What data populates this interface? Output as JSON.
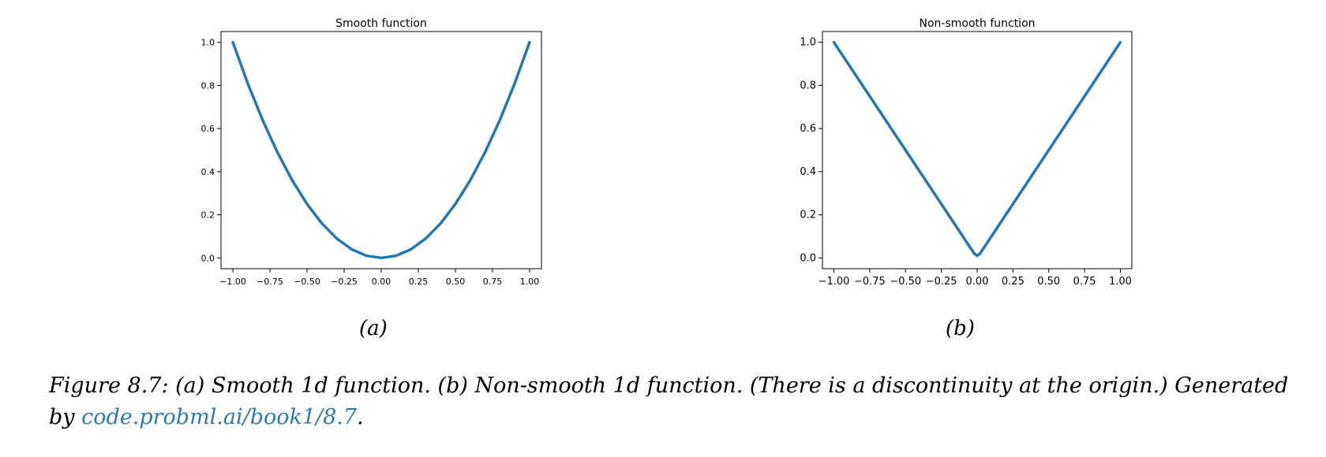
{
  "chart_data": [
    {
      "type": "line",
      "title": "Smooth function",
      "xlabel": "",
      "ylabel": "",
      "xlim": [
        -1.08,
        1.08
      ],
      "ylim": [
        -0.05,
        1.05
      ],
      "xticks": [
        -1.0,
        -0.75,
        -0.5,
        -0.25,
        0.0,
        0.25,
        0.5,
        0.75,
        1.0
      ],
      "xtick_labels": [
        "−1.00",
        "−0.75",
        "−0.50",
        "−0.25",
        "0.00",
        "0.25",
        "0.50",
        "0.75",
        "1.00"
      ],
      "yticks": [
        0.0,
        0.2,
        0.4,
        0.6,
        0.8,
        1.0
      ],
      "ytick_labels": [
        "0.0",
        "0.2",
        "0.4",
        "0.6",
        "0.8",
        "1.0"
      ],
      "grid": false,
      "series": [
        {
          "color": "#1f77b4",
          "x": [
            -1.0,
            -0.9,
            -0.8,
            -0.7,
            -0.6,
            -0.5,
            -0.4,
            -0.3,
            -0.2,
            -0.1,
            0.0,
            0.1,
            0.2,
            0.3,
            0.4,
            0.5,
            0.6,
            0.7,
            0.8,
            0.9,
            1.0
          ],
          "y": [
            1.0,
            0.81,
            0.64,
            0.49,
            0.36,
            0.25,
            0.16,
            0.09,
            0.04,
            0.01,
            0.0,
            0.01,
            0.04,
            0.09,
            0.16,
            0.25,
            0.36,
            0.49,
            0.64,
            0.81,
            1.0
          ]
        }
      ]
    },
    {
      "type": "line",
      "title": "Non-smooth function",
      "xlabel": "",
      "ylabel": "",
      "xlim": [
        -1.08,
        1.08
      ],
      "ylim": [
        -0.05,
        1.05
      ],
      "xticks": [
        -1.0,
        -0.75,
        -0.5,
        -0.25,
        0.0,
        0.25,
        0.5,
        0.75,
        1.0
      ],
      "xtick_labels": [
        "−1.00",
        "−0.75",
        "−0.50",
        "−0.25",
        "0.00",
        "0.25",
        "0.50",
        "0.75",
        "1.00"
      ],
      "yticks": [
        0.0,
        0.2,
        0.4,
        0.6,
        0.8,
        1.0
      ],
      "ytick_labels": [
        "0.0",
        "0.2",
        "0.4",
        "0.6",
        "0.8",
        "1.0"
      ],
      "grid": false,
      "series": [
        {
          "color": "#1f77b4",
          "x": [
            -1.0,
            -0.02,
            0.0,
            0.02,
            1.0
          ],
          "y": [
            1.0,
            0.02,
            0.01,
            0.02,
            1.0
          ]
        }
      ]
    }
  ],
  "sublabels": {
    "a": "(a)",
    "b": "(b)"
  },
  "caption": {
    "text": "Figure 8.7: (a) Smooth 1d function. (b) Non-smooth 1d function. (There is a discontinuity at the origin.) Generated by ",
    "link": "code.probml.ai/book1/8.7",
    "end": "."
  }
}
